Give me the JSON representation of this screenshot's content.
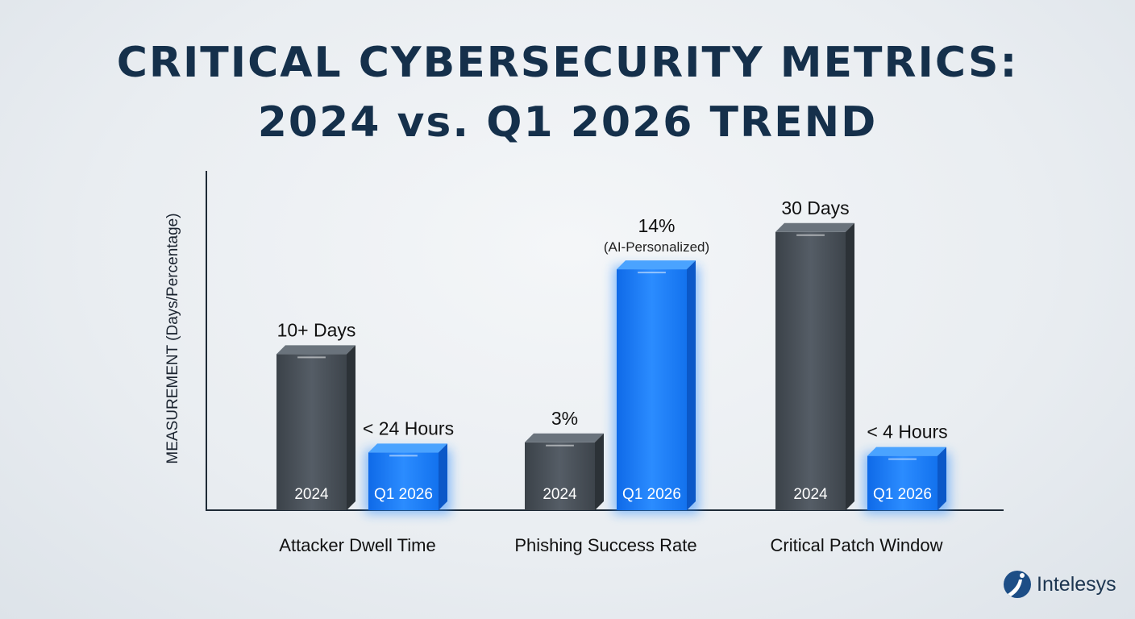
{
  "chart_data": {
    "type": "bar",
    "title": "CRITICAL CYBERSECURITY METRICS:",
    "subtitle": "2024 vs. Q1 2026 TREND",
    "ylabel": "MEASUREMENT (Days/Percentage)",
    "xlabel": "",
    "ylim": [
      0,
      100
    ],
    "grid": false,
    "categories": [
      "Attacker Dwell Time",
      "Phishing Success Rate",
      "Critical Patch Window"
    ],
    "series": [
      {
        "name": "2024",
        "color": "#454c54",
        "values": [
          46,
          20,
          82
        ],
        "labels": [
          "10+ Days",
          "3%",
          "30 Days"
        ]
      },
      {
        "name": "Q1 2026",
        "color": "#1a7cf0",
        "values": [
          17,
          71,
          16
        ],
        "labels": [
          "< 24 Hours",
          "14%",
          "< 4 Hours"
        ],
        "sublabels": [
          "",
          "(AI-Personalized)",
          ""
        ]
      }
    ]
  },
  "brand": {
    "name": "Intelesys",
    "color": "#1c3550"
  }
}
